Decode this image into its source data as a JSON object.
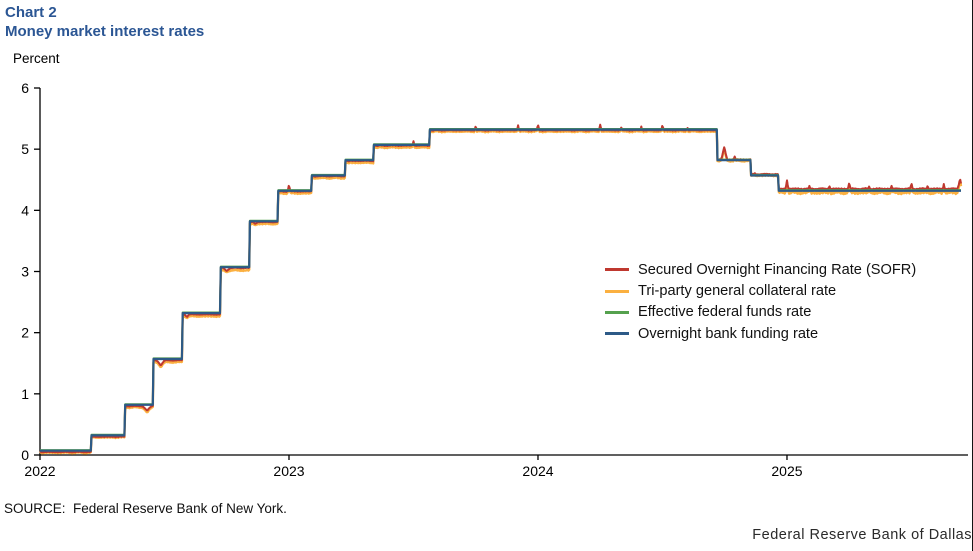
{
  "header": {
    "chart_number": "Chart 2",
    "title": "Money market interest rates",
    "accent_color": "#2b5694"
  },
  "footer": {
    "source": "SOURCE:  Federal Reserve Bank of New York.",
    "branding": "Federal Reserve Bank of Dallas"
  },
  "chart_data": {
    "type": "line",
    "title": "Money market interest rates",
    "xlabel": "",
    "ylabel": "Percent",
    "xlim": [
      2022,
      2025.727
    ],
    "ylim": [
      0,
      6
    ],
    "x_end": 2025.7,
    "x_ticks": [
      2022,
      2023,
      2024,
      2025
    ],
    "y_ticks": [
      0,
      1,
      2,
      3,
      4,
      5,
      6
    ],
    "grid": false,
    "legend_position": "middle-right",
    "axis_color": "#000000",
    "draw_order": [
      1,
      0,
      2,
      3
    ],
    "series": [
      {
        "key": "sofr",
        "name": "Secured Overnight Financing Rate (SOFR)",
        "color": "#bf382f",
        "width": 2,
        "steps": [
          [
            2022.0,
            0.05
          ],
          [
            2022.205,
            0.3
          ],
          [
            2022.34,
            0.8
          ],
          [
            2022.455,
            1.55
          ],
          [
            2022.57,
            2.3
          ],
          [
            2022.725,
            3.06
          ],
          [
            2022.84,
            3.81
          ],
          [
            2022.955,
            4.31
          ],
          [
            2023.09,
            4.56
          ],
          [
            2023.225,
            4.81
          ],
          [
            2023.34,
            5.06
          ],
          [
            2023.565,
            5.31
          ],
          [
            2024.72,
            4.83
          ],
          [
            2024.855,
            4.59
          ],
          [
            2024.965,
            4.35
          ]
        ],
        "noise": [
          [
            2022,
            0.01
          ],
          [
            2024.98,
            0.015
          ]
        ],
        "spikes": [
          [
            2022.43,
            0.73,
            0.022
          ],
          [
            2022.485,
            1.47,
            0.02
          ],
          [
            2022.59,
            2.26,
            0.012
          ],
          [
            2022.75,
            3.01,
            0.018
          ],
          [
            2022.865,
            3.78,
            0.012
          ],
          [
            2023.0,
            4.41,
            0.007
          ],
          [
            2023.105,
            4.55,
            0.009
          ],
          [
            2023.24,
            4.8,
            0.009
          ],
          [
            2023.355,
            5.05,
            0.009
          ],
          [
            2023.5,
            5.13,
            0.005
          ],
          [
            2023.578,
            5.3,
            0.008
          ],
          [
            2023.75,
            5.38,
            0.005
          ],
          [
            2023.92,
            5.39,
            0.005
          ],
          [
            2024.0,
            5.4,
            0.006
          ],
          [
            2024.25,
            5.4,
            0.006
          ],
          [
            2024.335,
            5.37,
            0.004
          ],
          [
            2024.415,
            5.37,
            0.004
          ],
          [
            2024.5,
            5.39,
            0.006
          ],
          [
            2024.6,
            5.36,
            0.004
          ],
          [
            2024.748,
            5.03,
            0.014
          ],
          [
            2024.79,
            4.88,
            0.005
          ],
          [
            2024.87,
            4.61,
            0.004
          ],
          [
            2025.0,
            4.49,
            0.007
          ],
          [
            2025.09,
            4.4,
            0.005
          ],
          [
            2025.17,
            4.41,
            0.004
          ],
          [
            2025.25,
            4.45,
            0.006
          ],
          [
            2025.33,
            4.39,
            0.004
          ],
          [
            2025.42,
            4.4,
            0.004
          ],
          [
            2025.5,
            4.44,
            0.006
          ],
          [
            2025.565,
            4.41,
            0.004
          ],
          [
            2025.63,
            4.43,
            0.005
          ],
          [
            2025.695,
            4.5,
            0.012
          ]
        ]
      },
      {
        "key": "tri-party",
        "name": "Tri-party general collateral rate",
        "color": "#fbb040",
        "width": 2.4,
        "steps": [
          [
            2022.0,
            0.04
          ],
          [
            2022.205,
            0.29
          ],
          [
            2022.34,
            0.78
          ],
          [
            2022.455,
            1.52
          ],
          [
            2022.57,
            2.27
          ],
          [
            2022.725,
            3.02
          ],
          [
            2022.84,
            3.78
          ],
          [
            2022.955,
            4.28
          ],
          [
            2023.09,
            4.53
          ],
          [
            2023.225,
            4.78
          ],
          [
            2023.34,
            5.03
          ],
          [
            2023.565,
            5.29
          ],
          [
            2024.72,
            4.81
          ],
          [
            2024.855,
            4.57
          ],
          [
            2024.965,
            4.29
          ]
        ],
        "noise": [
          [
            2022,
            0.015
          ],
          [
            2024.98,
            0.03
          ]
        ],
        "spikes": [
          [
            2022.43,
            0.7,
            0.022
          ],
          [
            2022.485,
            1.44,
            0.02
          ],
          [
            2022.59,
            2.24,
            0.012
          ],
          [
            2022.75,
            2.99,
            0.018
          ],
          [
            2022.865,
            3.76,
            0.012
          ],
          [
            2023.0,
            4.37,
            0.007
          ],
          [
            2023.105,
            4.52,
            0.009
          ],
          [
            2023.24,
            4.77,
            0.009
          ],
          [
            2023.355,
            5.02,
            0.009
          ],
          [
            2023.5,
            5.1,
            0.005
          ],
          [
            2023.578,
            5.28,
            0.008
          ],
          [
            2023.75,
            5.35,
            0.005
          ],
          [
            2023.92,
            5.36,
            0.005
          ],
          [
            2024.0,
            5.37,
            0.006
          ],
          [
            2024.25,
            5.37,
            0.006
          ],
          [
            2024.335,
            5.34,
            0.004
          ],
          [
            2024.415,
            5.34,
            0.004
          ],
          [
            2024.5,
            5.36,
            0.006
          ],
          [
            2024.6,
            5.33,
            0.004
          ],
          [
            2024.748,
            5.0,
            0.014
          ],
          [
            2024.79,
            4.85,
            0.005
          ],
          [
            2024.87,
            4.58,
            0.004
          ],
          [
            2025.0,
            4.46,
            0.007
          ],
          [
            2025.09,
            4.37,
            0.005
          ],
          [
            2025.17,
            4.38,
            0.004
          ],
          [
            2025.25,
            4.42,
            0.006
          ],
          [
            2025.33,
            4.36,
            0.004
          ],
          [
            2025.42,
            4.37,
            0.004
          ],
          [
            2025.5,
            4.41,
            0.006
          ],
          [
            2025.565,
            4.38,
            0.004
          ],
          [
            2025.63,
            4.4,
            0.005
          ],
          [
            2025.695,
            4.47,
            0.012
          ]
        ]
      },
      {
        "key": "effr",
        "name": "Effective federal funds rate",
        "color": "#55a14e",
        "width": 2,
        "steps": [
          [
            2022.0,
            0.08
          ],
          [
            2022.205,
            0.33
          ],
          [
            2022.34,
            0.83
          ],
          [
            2022.455,
            1.58
          ],
          [
            2022.57,
            2.33
          ],
          [
            2022.725,
            3.08
          ],
          [
            2022.84,
            3.83
          ],
          [
            2022.955,
            4.33
          ],
          [
            2023.09,
            4.58
          ],
          [
            2023.225,
            4.83
          ],
          [
            2023.34,
            5.08
          ],
          [
            2023.565,
            5.33
          ],
          [
            2024.72,
            4.83
          ],
          [
            2024.855,
            4.58
          ],
          [
            2024.965,
            4.33
          ]
        ],
        "noise": [
          [
            2022,
            0
          ]
        ],
        "spikes": []
      },
      {
        "key": "obfr",
        "name": "Overnight bank funding rate",
        "color": "#2d5a87",
        "width": 2.2,
        "steps": [
          [
            2022.0,
            0.07
          ],
          [
            2022.205,
            0.32
          ],
          [
            2022.34,
            0.82
          ],
          [
            2022.455,
            1.57
          ],
          [
            2022.57,
            2.32
          ],
          [
            2022.725,
            3.07
          ],
          [
            2022.84,
            3.82
          ],
          [
            2022.955,
            4.32
          ],
          [
            2023.09,
            4.57
          ],
          [
            2023.225,
            4.82
          ],
          [
            2023.34,
            5.07
          ],
          [
            2023.565,
            5.32
          ],
          [
            2024.72,
            4.82
          ],
          [
            2024.855,
            4.57
          ],
          [
            2024.965,
            4.32
          ]
        ],
        "noise": [
          [
            2022,
            0
          ]
        ],
        "spikes": []
      }
    ]
  }
}
